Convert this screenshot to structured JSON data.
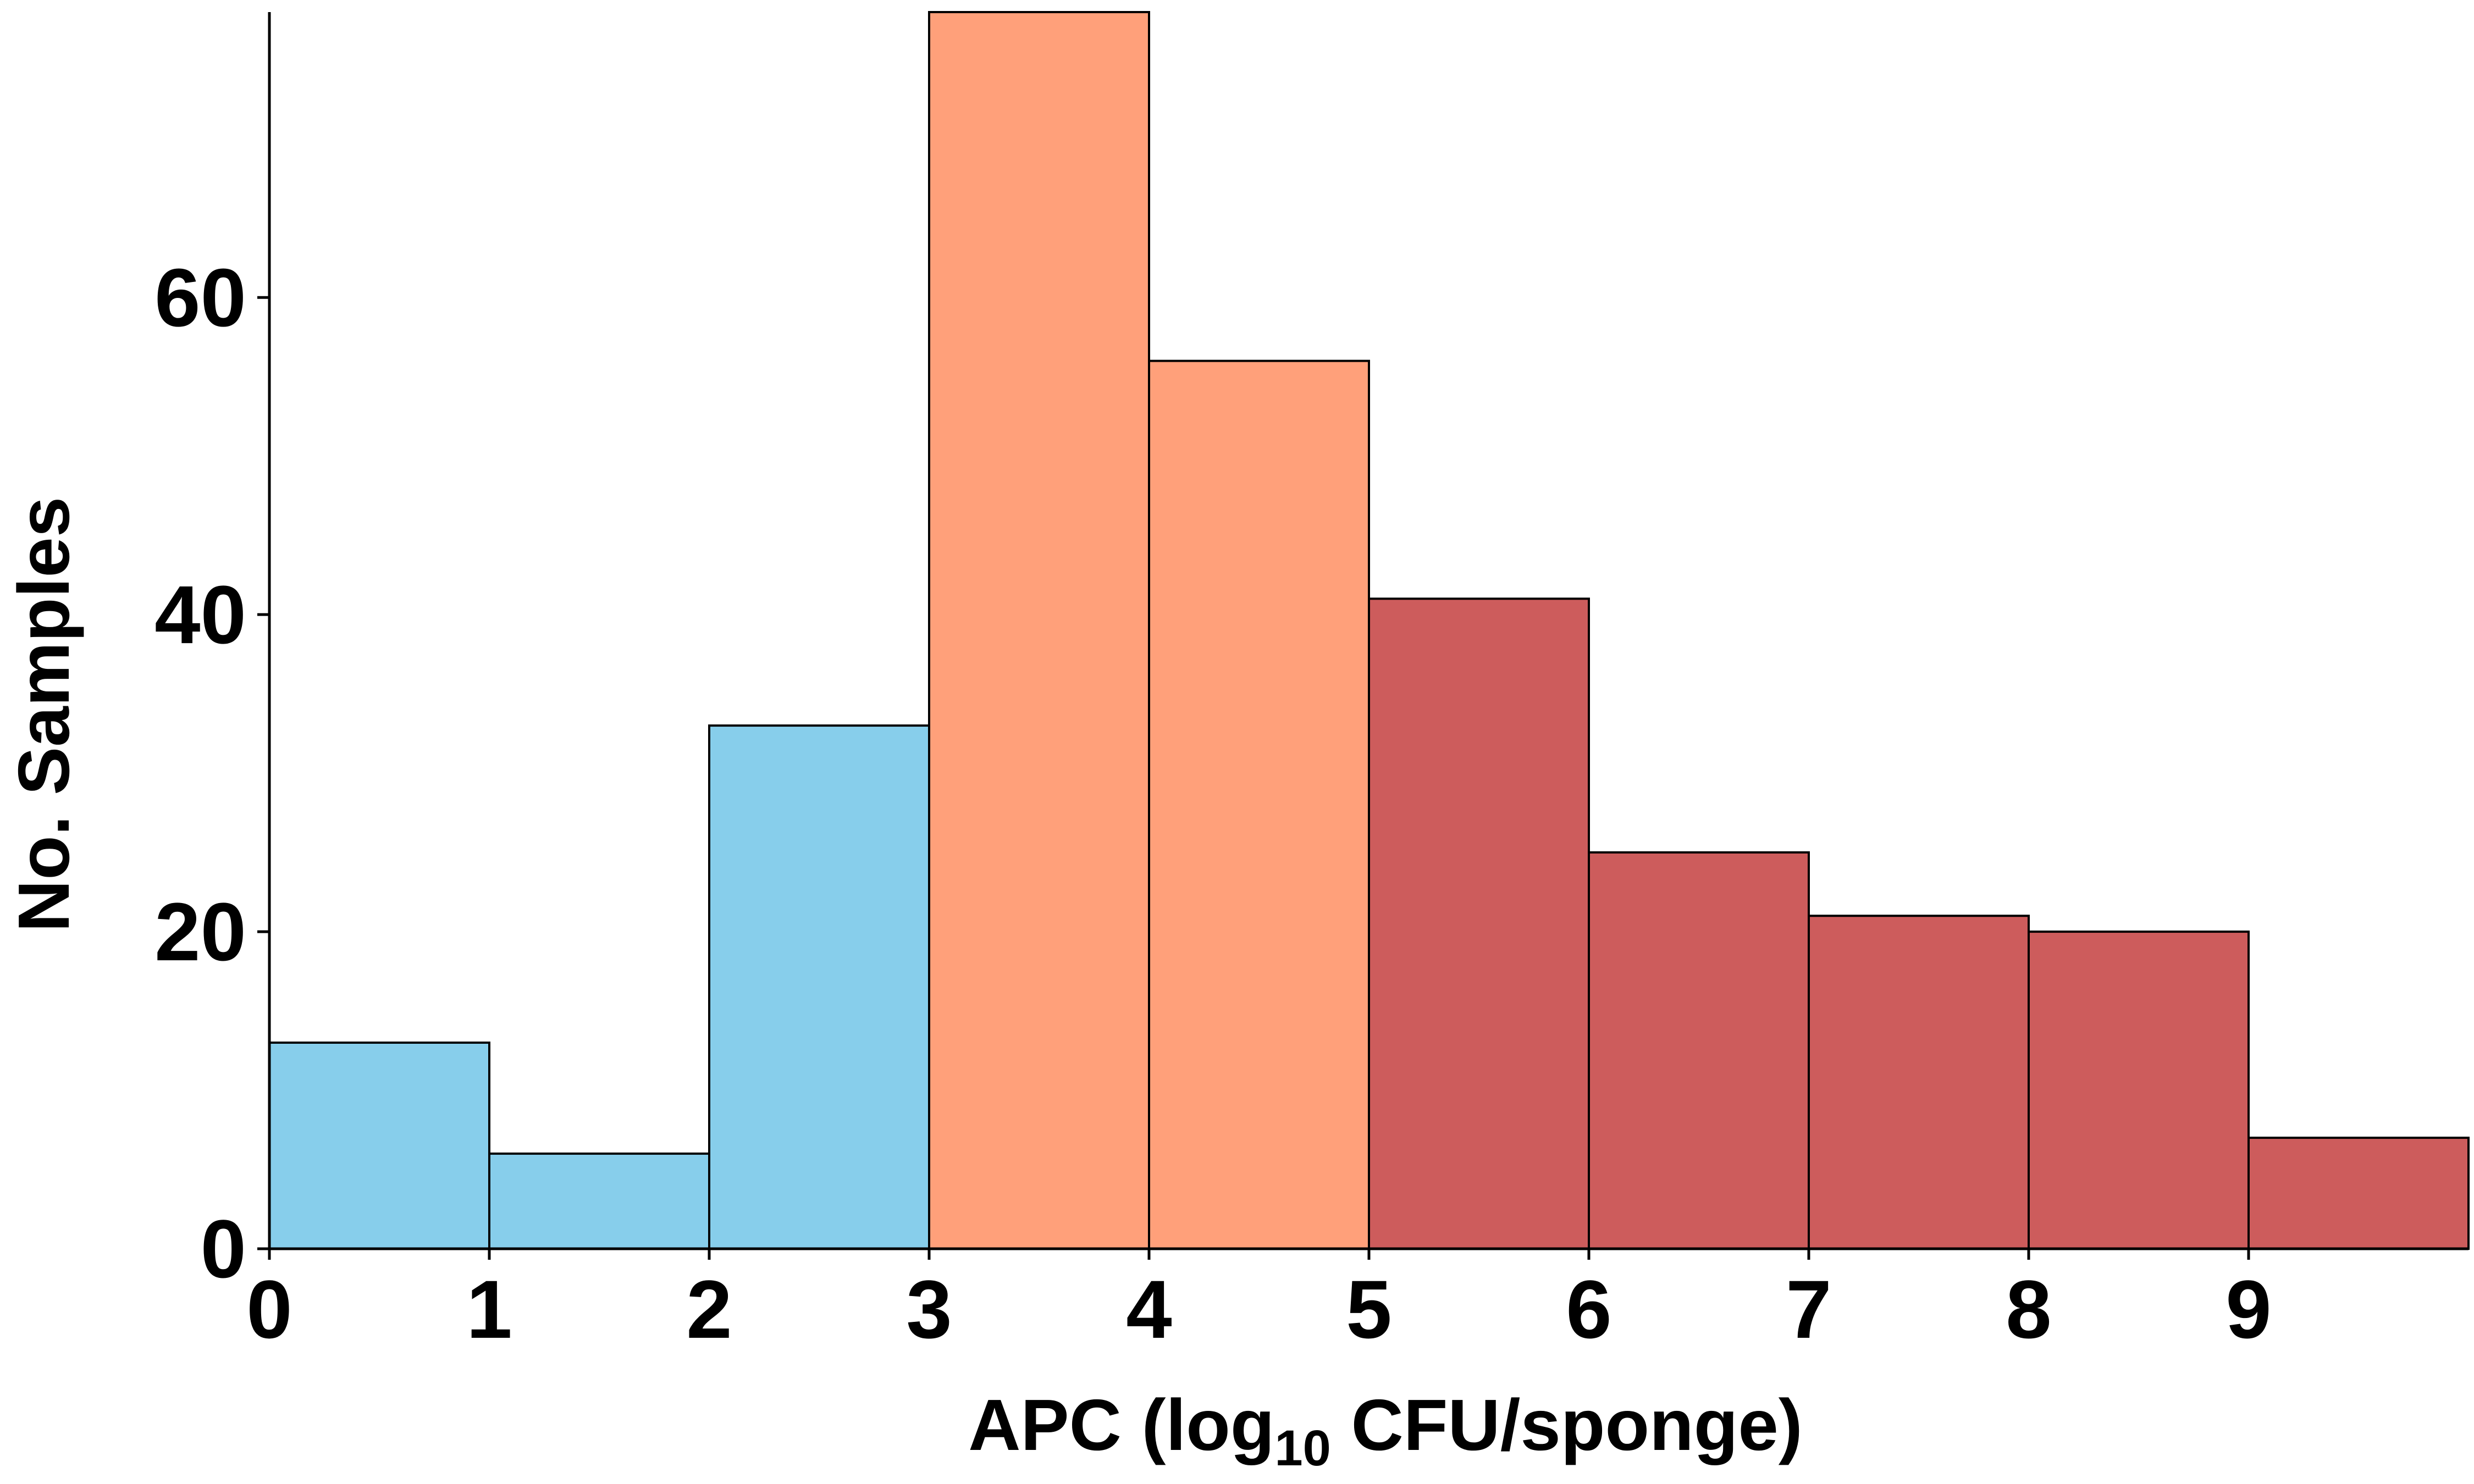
{
  "chart_data": {
    "type": "bar",
    "bins": [
      {
        "x0": 0,
        "x1": 1,
        "count": 13,
        "group": "low"
      },
      {
        "x0": 1,
        "x1": 2,
        "count": 6,
        "group": "low"
      },
      {
        "x0": 2,
        "x1": 3,
        "count": 33,
        "group": "low"
      },
      {
        "x0": 3,
        "x1": 4,
        "count": 78,
        "group": "mid"
      },
      {
        "x0": 4,
        "x1": 5,
        "count": 56,
        "group": "mid"
      },
      {
        "x0": 5,
        "x1": 6,
        "count": 41,
        "group": "high"
      },
      {
        "x0": 6,
        "x1": 7,
        "count": 25,
        "group": "high"
      },
      {
        "x0": 7,
        "x1": 8,
        "count": 21,
        "group": "high"
      },
      {
        "x0": 8,
        "x1": 9,
        "count": 20,
        "group": "high"
      },
      {
        "x0": 9,
        "x1": 10,
        "count": 7,
        "group": "high"
      }
    ],
    "colors": {
      "low": "#87CEEB",
      "mid": "#FFA07A",
      "high": "#CD5C5C"
    },
    "xlabel": "APC (log",
    "xlabel_sub": "10",
    "xlabel_tail": " CFU/sponge)",
    "ylabel": "No. Samples",
    "xticks": [
      "0",
      "1",
      "2",
      "3",
      "4",
      "5",
      "6",
      "7",
      "8",
      "9"
    ],
    "yticks": [
      "0",
      "20",
      "40",
      "60"
    ],
    "xlim": [
      0,
      10
    ],
    "ylim": [
      0,
      78
    ],
    "grid": false,
    "legend": false
  }
}
